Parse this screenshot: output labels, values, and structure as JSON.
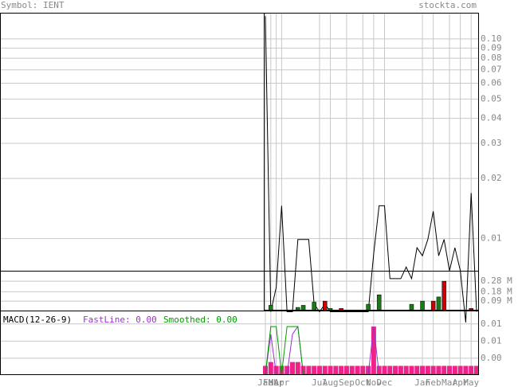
{
  "header": {
    "symbol": "Symbol: IENT",
    "site": "stockta.com"
  },
  "chart_data": [
    {
      "type": "line",
      "log_scale": true,
      "color": "#000000",
      "grid": true,
      "ylim": [
        0.0069,
        0.134
      ],
      "yticks": [
        {
          "value": 0.1,
          "label": "0.10"
        },
        0.09,
        0.08,
        0.07,
        0.06,
        0.05,
        0.04,
        0.03,
        0.02,
        0.01
      ],
      "categories": [
        "Jan",
        "Feb",
        "Mar",
        "Apr",
        null,
        null,
        null,
        null,
        null,
        null,
        "Jul",
        null,
        "Aug",
        null,
        null,
        "Sep",
        null,
        null,
        "Oct",
        null,
        "Nov",
        null,
        "Dec",
        null,
        null,
        null,
        null,
        null,
        null,
        "Jan",
        null,
        "Feb",
        null,
        null,
        "Mar",
        null,
        "Apr",
        null,
        "May",
        null
      ],
      "values": [
        0.13,
        0.0043,
        0.0057,
        0.0146,
        0.0043,
        0.0043,
        0.0099,
        0.0099,
        0.0099,
        0.0047,
        0.0043,
        0.0047,
        0.0043,
        0.0043,
        0.0043,
        0.0043,
        0.0043,
        0.0043,
        0.0043,
        0.0043,
        0.0084,
        0.0146,
        0.0146,
        0.0063,
        0.0063,
        0.0063,
        0.0072,
        0.0063,
        0.009,
        0.0082,
        0.0099,
        0.0137,
        0.0082,
        0.0099,
        0.0069,
        0.009,
        0.0069,
        0.0038,
        0.0169,
        0.0043
      ]
    },
    {
      "type": "bar",
      "grid": true,
      "ylim": [
        0,
        0.38
      ],
      "yticks": [
        {
          "value": 0.28,
          "label": "0.28 M"
        },
        {
          "value": 0.18,
          "label": "0.18 M"
        },
        {
          "value": 0.09,
          "label": "0.09 M"
        }
      ],
      "values": [
        0,
        0.05,
        0,
        0,
        0,
        0,
        0.03,
        0.05,
        0,
        0.08,
        0,
        0.09,
        0.02,
        0,
        0.02,
        0,
        0,
        0,
        0,
        0.06,
        0,
        0.15,
        0,
        0,
        0,
        0,
        0,
        0.06,
        0,
        0.09,
        0,
        0.09,
        0.13,
        0.28,
        0,
        0,
        0,
        0,
        0.02,
        0
      ],
      "colors": [
        "#1a7a1a",
        "#1a7a1a",
        "#1a7a1a",
        "#1a7a1a",
        "#1a7a1a",
        "#1a7a1a",
        "#1a7a1a",
        "#1a7a1a",
        "#1a7a1a",
        "#1a7a1a",
        "#1a7a1a",
        "#cc0000",
        "#1a7a1a",
        "#1a7a1a",
        "#cc0000",
        "#1a7a1a",
        "#1a7a1a",
        "#1a7a1a",
        "#1a7a1a",
        "#1a7a1a",
        "#1a7a1a",
        "#1a7a1a",
        "#1a7a1a",
        "#1a7a1a",
        "#1a7a1a",
        "#1a7a1a",
        "#1a7a1a",
        "#1a7a1a",
        "#1a7a1a",
        "#1a7a1a",
        "#1a7a1a",
        "#cc0000",
        "#1a7a1a",
        "#cc0000",
        "#1a7a1a",
        "#1a7a1a",
        "#1a7a1a",
        "#1a7a1a",
        "#cc0000",
        "#1a7a1a"
      ]
    },
    {
      "type": "macd",
      "title": "MACD(12-26-9)",
      "grid": true,
      "ylim": [
        -0.0022,
        0.0145
      ],
      "yticks": [
        {
          "value": 0.011,
          "label": "0.01"
        },
        {
          "value": 0.0065,
          "label": "0.01"
        },
        {
          "value": 0.002,
          "label": "0.00"
        }
      ],
      "series": [
        {
          "name": "FastLine: 0.00",
          "color": "#9933cc",
          "values": [
            -0.0022,
            0.0083,
            -0.0022,
            -0.0022,
            -0.0022,
            0.0083,
            0.0103,
            -0.0022,
            -0.0022,
            -0.0022,
            -0.0022,
            -0.0022,
            -0.0022,
            -0.0022,
            -0.0022,
            -0.0022,
            -0.0022,
            -0.0022,
            -0.0022,
            -0.0022,
            0.0103,
            -0.0022,
            -0.0022,
            -0.0022,
            -0.0022,
            -0.0022,
            -0.0022,
            -0.0022,
            -0.0022,
            -0.0022,
            -0.0022,
            -0.0022,
            -0.0022,
            -0.0022,
            -0.0022,
            -0.0022,
            -0.0022,
            -0.0022,
            -0.0022,
            -0.0022
          ]
        },
        {
          "name": "Smoothed: 0.00",
          "color": "#009900",
          "values": [
            -0.0022,
            0.0103,
            0.0103,
            -0.0022,
            0.0103,
            0.0103,
            0.0103,
            -0.0022,
            -0.0022,
            -0.0022,
            -0.0022,
            -0.0022,
            -0.0022,
            -0.0022,
            -0.0022,
            -0.0022,
            -0.0022,
            -0.0022,
            -0.0022,
            -0.0022,
            -0.0022,
            -0.0022,
            -0.0022,
            -0.0022,
            -0.0022,
            -0.0022,
            -0.0022,
            -0.0022,
            -0.0022,
            -0.0022,
            -0.0022,
            -0.0022,
            -0.0022,
            -0.0022,
            -0.0022,
            -0.0022,
            -0.0022,
            -0.0022,
            -0.0022,
            -0.0022
          ]
        }
      ],
      "histogram": {
        "color": "#ee2288",
        "values": [
          0,
          0.001,
          0,
          0,
          0,
          0.001,
          0.001,
          0,
          0,
          0,
          0,
          0,
          0,
          0,
          0,
          0,
          0,
          0,
          0,
          0,
          0.0103,
          0,
          0,
          0,
          0,
          0,
          0,
          0,
          0,
          0,
          0,
          0,
          0,
          0,
          0,
          0,
          0,
          0,
          0,
          0
        ]
      }
    }
  ]
}
